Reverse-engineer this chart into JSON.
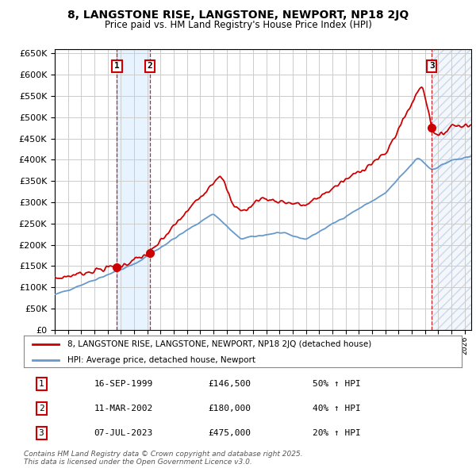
{
  "title": "8, LANGSTONE RISE, LANGSTONE, NEWPORT, NP18 2JQ",
  "subtitle": "Price paid vs. HM Land Registry's House Price Index (HPI)",
  "xlim_start": 1995.0,
  "xlim_end": 2026.5,
  "ylim": [
    0,
    660000
  ],
  "yticks": [
    0,
    50000,
    100000,
    150000,
    200000,
    250000,
    300000,
    350000,
    400000,
    450000,
    500000,
    550000,
    600000,
    650000
  ],
  "xticks": [
    1995,
    1996,
    1997,
    1998,
    1999,
    2000,
    2001,
    2002,
    2003,
    2004,
    2005,
    2006,
    2007,
    2008,
    2009,
    2010,
    2011,
    2012,
    2013,
    2014,
    2015,
    2016,
    2017,
    2018,
    2019,
    2020,
    2021,
    2022,
    2023,
    2024,
    2025,
    2026
  ],
  "sale_dates": [
    1999.71,
    2002.19,
    2023.52
  ],
  "sale_prices": [
    146500,
    180000,
    475000
  ],
  "sale_labels": [
    "1",
    "2",
    "3"
  ],
  "background_color": "#ffffff",
  "grid_color": "#cccccc",
  "hpi_line_color": "#6699cc",
  "price_line_color": "#cc0000",
  "sale_marker_color": "#cc0000",
  "legend_label_price": "8, LANGSTONE RISE, LANGSTONE, NEWPORT, NP18 2JQ (detached house)",
  "legend_label_hpi": "HPI: Average price, detached house, Newport",
  "table_rows": [
    [
      "1",
      "16-SEP-1999",
      "£146,500",
      "50% ↑ HPI"
    ],
    [
      "2",
      "11-MAR-2002",
      "£180,000",
      "40% ↑ HPI"
    ],
    [
      "3",
      "07-JUL-2023",
      "£475,000",
      "20% ↑ HPI"
    ]
  ],
  "footer": "Contains HM Land Registry data © Crown copyright and database right 2025.\nThis data is licensed under the Open Government Licence v3.0.",
  "shaded_region_color": "#ddeeff",
  "hatch_region_color": "#e8f0f8"
}
